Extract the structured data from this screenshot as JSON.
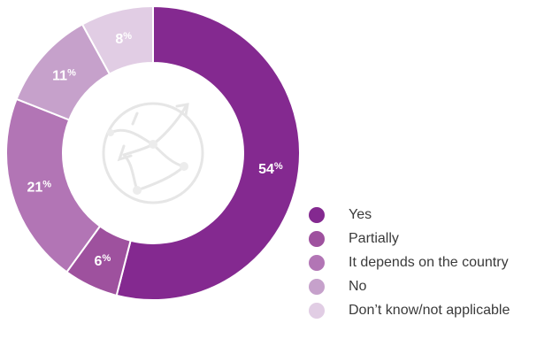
{
  "chart_data": {
    "type": "pie",
    "categories": [
      "Yes",
      "Partially",
      "It depends on the country",
      "No",
      "Don’t know/not applicable"
    ],
    "values": [
      54,
      6,
      21,
      11,
      8
    ],
    "value_labels": [
      "54",
      "6",
      "21",
      "11",
      "8"
    ],
    "value_suffix": "%",
    "colors": [
      "#842990",
      "#9e519e",
      "#b275b5",
      "#c6a1cb",
      "#e1cde4"
    ],
    "donut": true,
    "legend_position": "bottom-right",
    "center_icon": "globe-network-icon"
  }
}
